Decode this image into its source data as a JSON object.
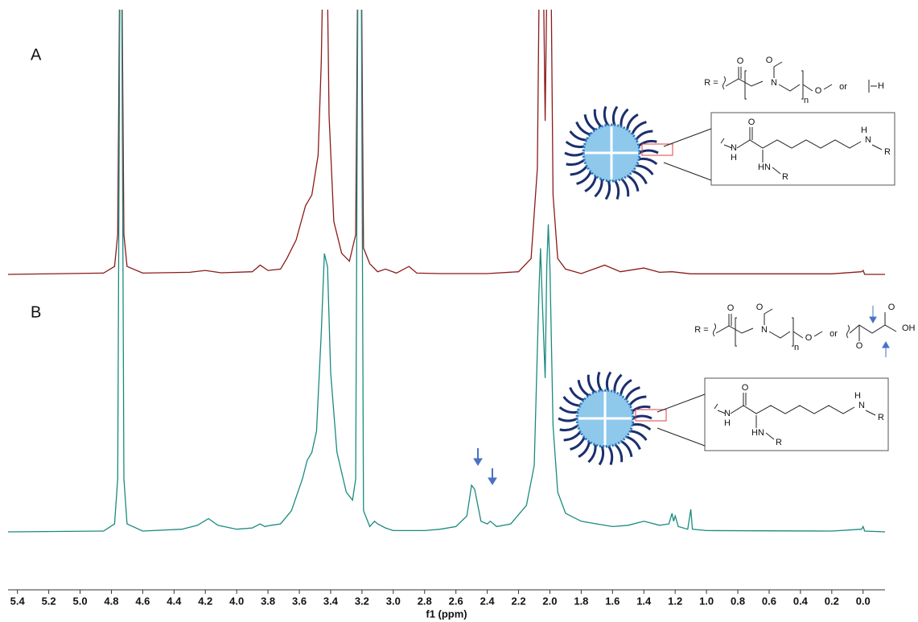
{
  "chart_data": [
    {
      "type": "line",
      "title": "A",
      "color": "#8b1a1a",
      "xlim": [
        5.46,
        -0.14
      ],
      "ylim": [
        0,
        100
      ],
      "x": [
        5.46,
        4.85,
        4.78,
        4.76,
        4.745,
        4.735,
        4.72,
        4.7,
        4.6,
        4.3,
        4.2,
        4.1,
        3.9,
        3.85,
        3.8,
        3.72,
        3.68,
        3.62,
        3.56,
        3.52,
        3.48,
        3.46,
        3.445,
        3.425,
        3.41,
        3.38,
        3.33,
        3.28,
        3.24,
        3.225,
        3.205,
        3.19,
        3.15,
        3.1,
        3.05,
        2.98,
        2.9,
        2.85,
        2.7,
        2.4,
        2.2,
        2.12,
        2.08,
        2.065,
        2.045,
        2.03,
        2.015,
        1.995,
        1.98,
        1.95,
        1.9,
        1.8,
        1.65,
        1.55,
        1.4,
        1.3,
        1.22,
        1.1,
        0.2,
        0.01,
        0.0,
        -0.01,
        -0.14
      ],
      "values": [
        0,
        0.5,
        3,
        15,
        130,
        130,
        15,
        3,
        0.5,
        0.8,
        1.5,
        0.6,
        1,
        3.5,
        1.5,
        2,
        6,
        13,
        26,
        30,
        45,
        80,
        130,
        130,
        60,
        20,
        8,
        5,
        15,
        130,
        130,
        10,
        4,
        1,
        2,
        0.5,
        3,
        0.5,
        0.3,
        0.3,
        1,
        6,
        40,
        130,
        130,
        58,
        130,
        130,
        30,
        6,
        2,
        0.3,
        3.5,
        1,
        2.4,
        0.8,
        1,
        0.2,
        0.2,
        1,
        1.5,
        0,
        0
      ]
    },
    {
      "type": "line",
      "title": "B",
      "color": "#1a8a80",
      "xlim": [
        5.46,
        -0.14
      ],
      "ylim": [
        0,
        197
      ],
      "x": [
        5.46,
        4.85,
        4.78,
        4.76,
        4.745,
        4.735,
        4.72,
        4.7,
        4.6,
        4.35,
        4.25,
        4.18,
        4.12,
        4.0,
        3.9,
        3.85,
        3.82,
        3.78,
        3.72,
        3.65,
        3.58,
        3.55,
        3.52,
        3.49,
        3.46,
        3.44,
        3.42,
        3.4,
        3.36,
        3.3,
        3.26,
        3.24,
        3.225,
        3.205,
        3.19,
        3.15,
        3.12,
        3.1,
        3.05,
        3.0,
        2.8,
        2.7,
        2.6,
        2.53,
        2.5,
        2.48,
        2.44,
        2.4,
        2.38,
        2.34,
        2.25,
        2.15,
        2.1,
        2.07,
        2.06,
        2.05,
        2.03,
        2.02,
        2.01,
        2.0,
        1.98,
        1.95,
        1.9,
        1.8,
        1.7,
        1.6,
        1.5,
        1.4,
        1.3,
        1.24,
        1.22,
        1.21,
        1.2,
        1.18,
        1.12,
        1.1,
        1.09,
        1.0,
        0.2,
        0.01,
        0.0,
        -0.01,
        -0.14
      ],
      "values": [
        0,
        0.3,
        3,
        20,
        220,
        220,
        20,
        3,
        0.3,
        1,
        2.5,
        5,
        2.5,
        1,
        1.5,
        3,
        2,
        2.5,
        3,
        8,
        20,
        27,
        30,
        38,
        75,
        105,
        100,
        60,
        30,
        15,
        12,
        20,
        220,
        220,
        8,
        2,
        4,
        3,
        1.5,
        0.5,
        0.5,
        1,
        2,
        6,
        17.6,
        16,
        4,
        3,
        4,
        2,
        3,
        10,
        25,
        90,
        107,
        90,
        58,
        100,
        116,
        100,
        40,
        15,
        7,
        4,
        3,
        2,
        2.5,
        4,
        2.5,
        3,
        7,
        4,
        6,
        2,
        1,
        8.5,
        1,
        0.5,
        0.3,
        1,
        2,
        0.3,
        0
      ],
      "xlabel": "f1 (ppm)",
      "xticks": [
        5.4,
        5.2,
        {
          "value": 5,
          "label": "5.0"
        },
        4.8,
        4.6,
        4.4,
        4.2,
        {
          "value": 4,
          "label": "4.0"
        },
        3.8,
        3.6,
        3.4,
        3.2,
        {
          "value": 3,
          "label": "3.0"
        },
        2.8,
        2.6,
        2.4,
        2.2,
        {
          "value": 2,
          "label": "2.0"
        },
        1.8,
        1.6,
        1.4,
        1.2,
        {
          "value": 1,
          "label": "1.0"
        },
        0.8,
        0.6,
        0.4,
        0.2,
        {
          "value": 0,
          "label": "0.0"
        }
      ]
    }
  ],
  "structures": [
    {
      "r_prefix": "R =",
      "r_atoms": [
        "O",
        "N",
        "O",
        "n",
        "O"
      ],
      "or": "or",
      "alt": [
        "H"
      ],
      "box": [
        "O",
        "N",
        "H",
        "HN",
        "R",
        "H",
        "N",
        "R"
      ]
    },
    {
      "r_prefix": "R =",
      "r_atoms": [
        "O",
        "N",
        "O",
        "n",
        "O"
      ],
      "or": "or",
      "alt": [
        "O",
        "O",
        "OH"
      ],
      "box": [
        "O",
        "N",
        "H",
        "HN",
        "R",
        "H",
        "N",
        "R"
      ]
    }
  ]
}
